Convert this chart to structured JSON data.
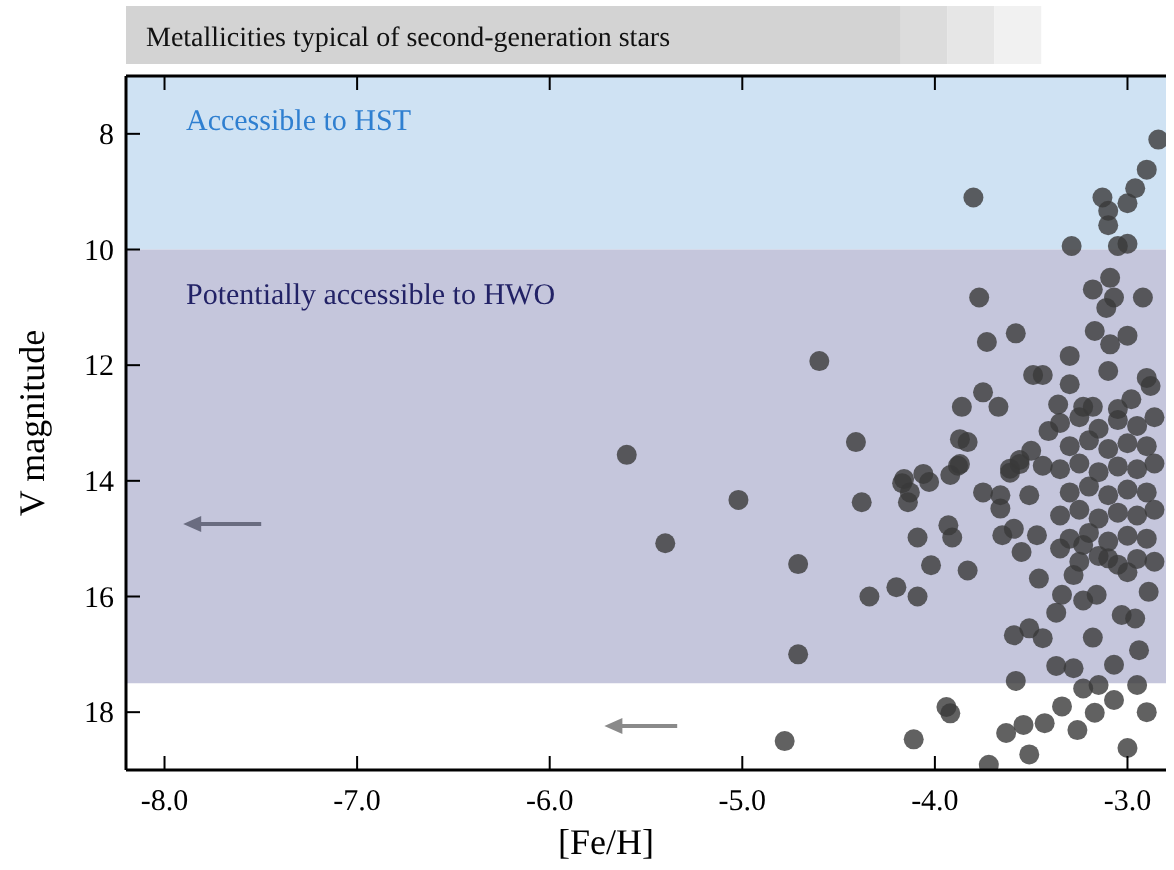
{
  "chart_data": {
    "type": "scatter",
    "title": "Metallicities typical of second-generation stars",
    "xlabel": "[Fe/H]",
    "ylabel": "V magnitude",
    "xlim": [
      -8.2,
      -2.8
    ],
    "ylim": [
      19,
      7
    ],
    "xticks": [
      {
        "value": -8,
        "label": "-8.0"
      },
      {
        "value": -7,
        "label": "-7.0"
      },
      {
        "value": -6,
        "label": "-6.0"
      },
      {
        "value": -5,
        "label": "-5.0"
      },
      {
        "value": -4,
        "label": "-4.0"
      },
      {
        "value": -3,
        "label": "-3.0"
      }
    ],
    "yticks": [
      8,
      10,
      12,
      14,
      16,
      18
    ],
    "bands": [
      {
        "axis": "y",
        "from": 7,
        "to": 10,
        "label": "Accessible to HST",
        "color": "#cfe2f3"
      },
      {
        "axis": "y",
        "from": 10,
        "to": 17.5,
        "label": "Potentially accessible to HWO",
        "color": "#c5c6dc"
      }
    ],
    "marker": "circle",
    "grid": false,
    "series": [
      {
        "color": "#3a3a3a",
        "x": [
          -5.6,
          -5.4,
          -5.02,
          -4.71,
          -4.71,
          -4.78,
          -3.8,
          -4.6,
          -3.77,
          -3.73,
          -3.58,
          -4.41,
          -3.29,
          -3.13,
          -3.1,
          -3.1,
          -2.9,
          -3.0,
          -2.96,
          -3.0,
          -3.05,
          -2.84,
          -3.09,
          -3.18,
          -3.07,
          -3.11,
          -2.92,
          -3.17,
          -3.09,
          -3.0,
          -3.3,
          -3.1,
          -3.49,
          -3.44,
          -3.3,
          -3.75,
          -3.86,
          -3.67,
          -3.36,
          -3.87,
          -3.83,
          -3.87,
          -4.06,
          -4.16,
          -3.92,
          -3.61,
          -3.56,
          -3.5,
          -3.41,
          -3.23,
          -3.18,
          -3.05,
          -2.98,
          -2.9,
          -2.88,
          -4.38,
          -4.17,
          -4.13,
          -4.14,
          -4.03,
          -3.88,
          -3.93,
          -3.91,
          -4.09,
          -4.02,
          -3.83,
          -4.2,
          -4.34,
          -4.09,
          -3.94,
          -3.92,
          -4.11,
          -3.63,
          -3.54,
          -3.43,
          -3.34,
          -3.51,
          -3.72,
          -3.26,
          -3.17,
          -3.07,
          -3.0,
          -2.9,
          -3.58,
          -3.59,
          -3.51,
          -3.44,
          -3.18,
          -3.37,
          -3.28,
          -3.23,
          -3.15,
          -3.07,
          -2.94,
          -2.95,
          -3.37,
          -3.34,
          -3.23,
          -3.28,
          -3.46,
          -3.16,
          -3.03,
          -2.96,
          -3.55,
          -3.65,
          -3.59,
          -3.47,
          -3.75,
          -3.66,
          -3.66,
          -3.51,
          -3.35,
          -3.23,
          -3.1,
          -2.89,
          -3.0,
          -3.61,
          -3.56,
          -3.44,
          -3.35,
          -3.25,
          -3.15,
          -3.05,
          -2.95,
          -2.86,
          -3.3,
          -3.2,
          -3.1,
          -3.0,
          -2.9,
          -3.35,
          -3.25,
          -3.15,
          -3.05,
          -2.95,
          -2.86,
          -3.3,
          -3.2,
          -3.1,
          -3.0,
          -2.9,
          -3.35,
          -3.25,
          -3.15,
          -3.05,
          -2.95,
          -2.86,
          -3.3,
          -3.2,
          -3.1,
          -3.0,
          -2.9,
          -3.25,
          -3.15,
          -3.05,
          -2.95,
          -2.86
        ],
        "values": [
          13.55,
          15.08,
          14.33,
          15.44,
          17.0,
          18.5,
          9.1,
          11.93,
          10.83,
          11.6,
          11.45,
          13.33,
          9.94,
          9.1,
          9.33,
          9.58,
          8.62,
          9.2,
          8.94,
          9.9,
          9.94,
          8.1,
          10.49,
          10.69,
          10.83,
          11.01,
          10.83,
          11.41,
          11.64,
          11.49,
          11.84,
          12.1,
          12.17,
          12.17,
          12.33,
          12.47,
          12.72,
          12.72,
          12.68,
          13.28,
          13.33,
          13.71,
          13.88,
          13.97,
          13.9,
          13.79,
          13.64,
          13.48,
          13.14,
          12.72,
          12.72,
          12.76,
          12.59,
          12.22,
          12.36,
          14.37,
          14.04,
          14.2,
          14.37,
          14.02,
          13.74,
          14.77,
          14.98,
          14.98,
          15.46,
          15.55,
          15.84,
          16.0,
          16.0,
          17.91,
          18.02,
          18.47,
          18.36,
          18.22,
          18.19,
          17.9,
          18.73,
          18.91,
          18.31,
          18.01,
          17.79,
          18.62,
          18.0,
          17.46,
          16.67,
          16.55,
          16.72,
          16.71,
          17.2,
          17.24,
          17.59,
          17.53,
          17.18,
          16.93,
          17.53,
          16.28,
          15.97,
          16.07,
          15.63,
          15.69,
          15.97,
          16.32,
          16.38,
          15.23,
          14.94,
          14.83,
          14.94,
          14.2,
          14.25,
          14.48,
          14.25,
          15.17,
          15.11,
          15.34,
          15.92,
          15.58,
          13.86,
          13.71,
          13.74,
          13.0,
          12.9,
          13.1,
          12.95,
          13.05,
          12.9,
          13.4,
          13.3,
          13.45,
          13.35,
          13.4,
          13.8,
          13.7,
          13.85,
          13.75,
          13.8,
          13.7,
          14.2,
          14.1,
          14.25,
          14.15,
          14.2,
          14.6,
          14.5,
          14.65,
          14.55,
          14.6,
          14.5,
          15.0,
          14.9,
          15.05,
          14.95,
          15.0,
          15.4,
          15.3,
          15.45,
          15.35,
          15.4
        ]
      }
    ]
  }
}
